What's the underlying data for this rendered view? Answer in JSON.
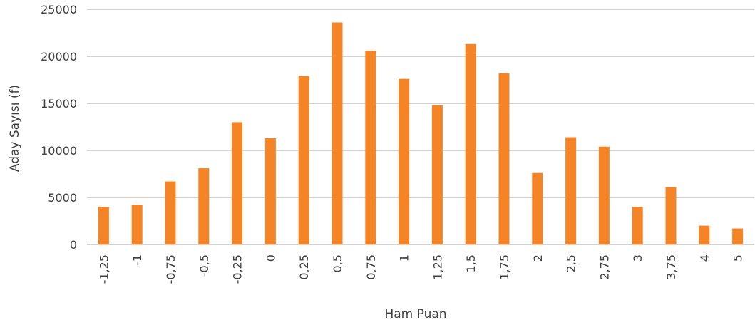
{
  "chart_data": {
    "type": "bar",
    "title": "",
    "xlabel": "Ham Puan",
    "ylabel": "Aday Sayısı (f)",
    "categories": [
      "-1,25",
      "-1",
      "-0,75",
      "-0,5",
      "-0,25",
      "0",
      "0,25",
      "0,5",
      "0,75",
      "1",
      "1,25",
      "1,5",
      "1,75",
      "2",
      "2,5",
      "2,75",
      "3",
      "3,75",
      "4",
      "5"
    ],
    "values": [
      4000,
      4200,
      6700,
      8100,
      13000,
      11300,
      17900,
      23600,
      20600,
      17600,
      14800,
      21300,
      18200,
      7600,
      11400,
      10400,
      4000,
      6100,
      2000,
      1700
    ],
    "ylim": [
      0,
      25000
    ],
    "yticks": [
      "0",
      "5000",
      "10000",
      "15000",
      "20000",
      "25000"
    ],
    "ytick_values": [
      0,
      5000,
      10000,
      15000,
      20000,
      25000
    ],
    "grid": true,
    "legend": "none",
    "colors": {
      "bar": "#f58426",
      "grid": "#a6a6a6",
      "text": "#404040"
    }
  }
}
